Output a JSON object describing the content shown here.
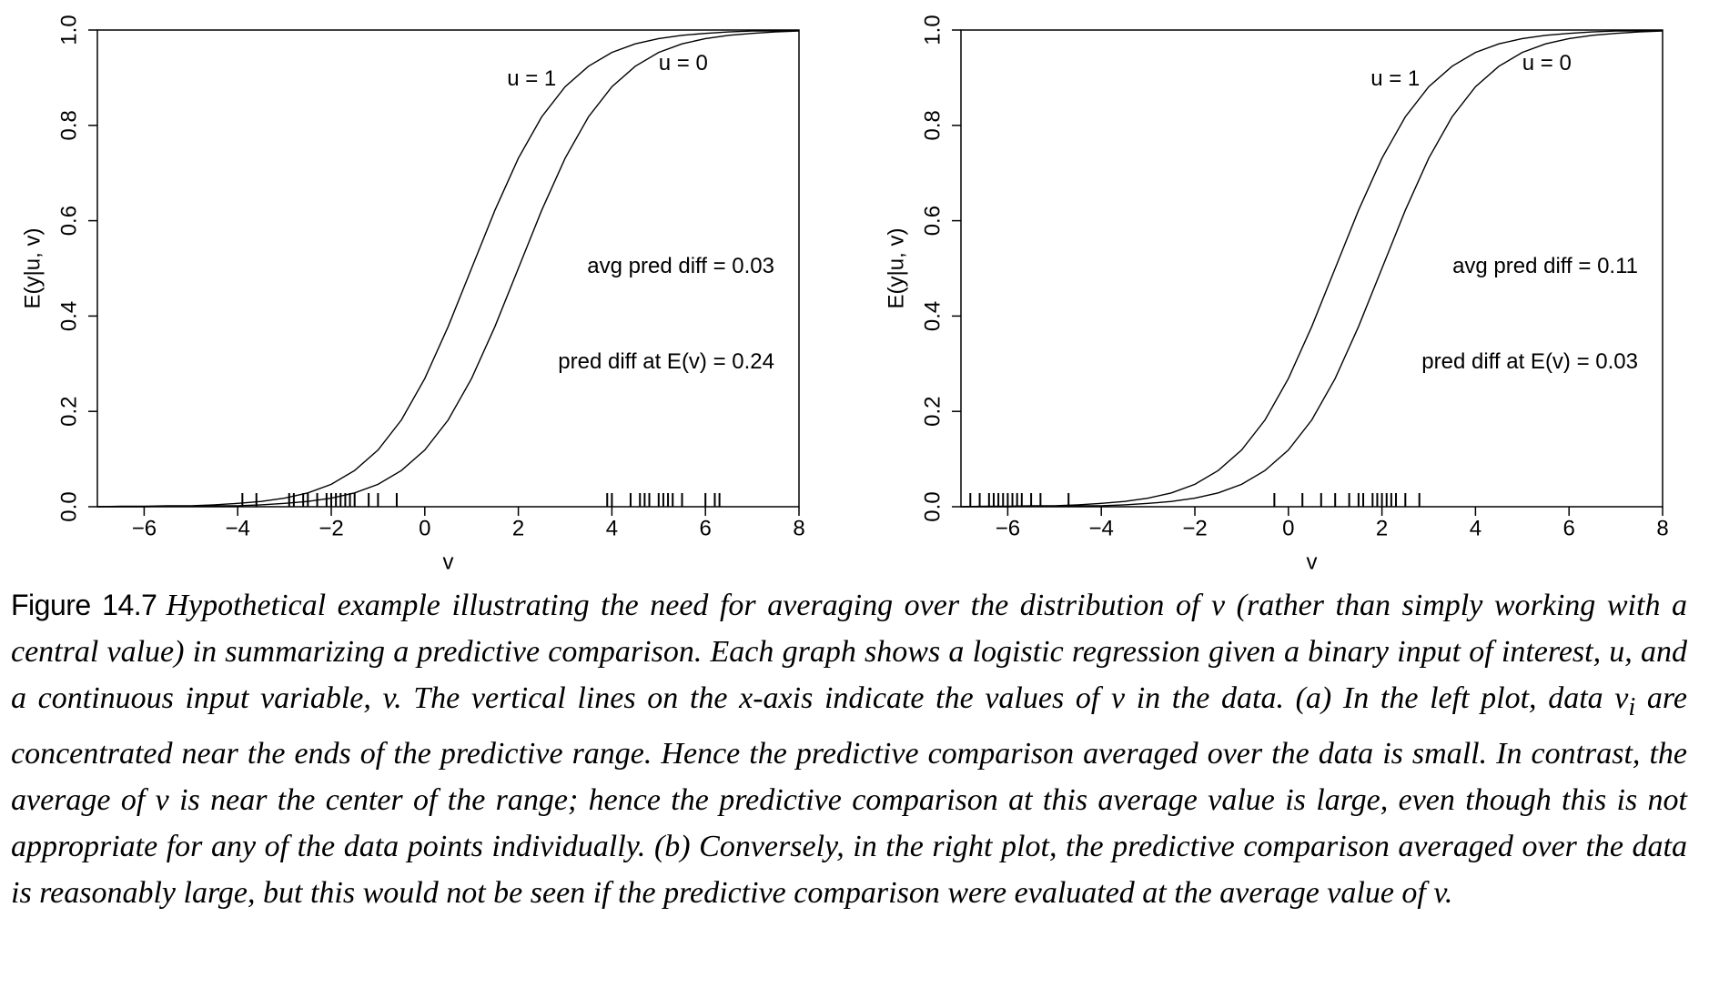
{
  "chart_data": [
    {
      "type": "line",
      "xlabel": "v",
      "ylabel": "E(y|u, v)",
      "xlim": [
        -7,
        8
      ],
      "ylim": [
        0,
        1
      ],
      "xticks": [
        {
          "value": -6,
          "label": "−6"
        },
        {
          "value": -4,
          "label": "−4"
        },
        {
          "value": -2,
          "label": "−2"
        },
        0,
        2,
        4,
        6,
        8
      ],
      "yticks": [
        {
          "value": 0,
          "label": "0.0"
        },
        {
          "value": 0.2,
          "label": "0.2"
        },
        {
          "value": 0.4,
          "label": "0.4"
        },
        {
          "value": 0.6,
          "label": "0.6"
        },
        {
          "value": 0.8,
          "label": "0.8"
        },
        {
          "value": 1,
          "label": "1.0"
        }
      ],
      "x": [
        -7,
        -6.5,
        -6,
        -5.5,
        -5,
        -4.5,
        -4,
        -3.5,
        -3,
        -2.5,
        -2,
        -1.5,
        -1,
        -0.5,
        0,
        0.5,
        1,
        1.5,
        2,
        2.5,
        3,
        3.5,
        4,
        4.5,
        5,
        5.5,
        6,
        6.5,
        7,
        7.5,
        8
      ],
      "series": [
        {
          "name": "u = 1",
          "color": "#000000",
          "values": [
            0.0,
            0.001,
            0.001,
            0.002,
            0.002,
            0.004,
            0.007,
            0.011,
            0.018,
            0.029,
            0.047,
            0.076,
            0.119,
            0.182,
            0.269,
            0.378,
            0.5,
            0.622,
            0.731,
            0.818,
            0.881,
            0.924,
            0.953,
            0.971,
            0.982,
            0.989,
            0.993,
            0.996,
            0.998,
            0.998,
            0.999
          ]
        },
        {
          "name": "u = 0",
          "color": "#000000",
          "values": [
            0.0,
            0.0,
            0.0,
            0.001,
            0.001,
            0.002,
            0.002,
            0.004,
            0.007,
            0.011,
            0.018,
            0.029,
            0.047,
            0.076,
            0.119,
            0.182,
            0.269,
            0.378,
            0.5,
            0.622,
            0.731,
            0.818,
            0.881,
            0.924,
            0.953,
            0.971,
            0.982,
            0.989,
            0.993,
            0.996,
            0.998
          ]
        }
      ],
      "annotations": [
        "avg pred diff = 0.03",
        "pred diff at E(v) = 0.24"
      ],
      "rug": [
        -3.9,
        -3.6,
        -2.9,
        -2.8,
        -2.6,
        -2.5,
        -2.3,
        -2.1,
        -2.0,
        -1.9,
        -1.8,
        -1.7,
        -1.6,
        -1.5,
        -1.2,
        -1.0,
        -0.6,
        3.9,
        4.0,
        4.4,
        4.6,
        4.7,
        4.8,
        5.0,
        5.1,
        5.2,
        5.3,
        5.5,
        6.0,
        6.2,
        6.3
      ]
    },
    {
      "type": "line",
      "xlabel": "v",
      "ylabel": "E(y|u, v)",
      "xlim": [
        -7,
        8
      ],
      "ylim": [
        0,
        1
      ],
      "xticks": [
        {
          "value": -6,
          "label": "−6"
        },
        {
          "value": -4,
          "label": "−4"
        },
        {
          "value": -2,
          "label": "−2"
        },
        0,
        2,
        4,
        6,
        8
      ],
      "yticks": [
        {
          "value": 0,
          "label": "0.0"
        },
        {
          "value": 0.2,
          "label": "0.2"
        },
        {
          "value": 0.4,
          "label": "0.4"
        },
        {
          "value": 0.6,
          "label": "0.6"
        },
        {
          "value": 0.8,
          "label": "0.8"
        },
        {
          "value": 1,
          "label": "1.0"
        }
      ],
      "x": [
        -7,
        -6.5,
        -6,
        -5.5,
        -5,
        -4.5,
        -4,
        -3.5,
        -3,
        -2.5,
        -2,
        -1.5,
        -1,
        -0.5,
        0,
        0.5,
        1,
        1.5,
        2,
        2.5,
        3,
        3.5,
        4,
        4.5,
        5,
        5.5,
        6,
        6.5,
        7,
        7.5,
        8
      ],
      "series": [
        {
          "name": "u = 1",
          "color": "#000000",
          "values": [
            0.0,
            0.001,
            0.001,
            0.002,
            0.002,
            0.004,
            0.007,
            0.011,
            0.018,
            0.029,
            0.047,
            0.076,
            0.119,
            0.182,
            0.269,
            0.378,
            0.5,
            0.622,
            0.731,
            0.818,
            0.881,
            0.924,
            0.953,
            0.971,
            0.982,
            0.989,
            0.993,
            0.996,
            0.998,
            0.998,
            0.999
          ]
        },
        {
          "name": "u = 0",
          "color": "#000000",
          "values": [
            0.0,
            0.0,
            0.0,
            0.001,
            0.001,
            0.002,
            0.002,
            0.004,
            0.007,
            0.011,
            0.018,
            0.029,
            0.047,
            0.076,
            0.119,
            0.182,
            0.269,
            0.378,
            0.5,
            0.622,
            0.731,
            0.818,
            0.881,
            0.924,
            0.953,
            0.971,
            0.982,
            0.989,
            0.993,
            0.996,
            0.998
          ]
        }
      ],
      "annotations": [
        "avg pred diff = 0.11",
        "pred diff at E(v) = 0.03"
      ],
      "rug": [
        -6.8,
        -6.6,
        -6.4,
        -6.3,
        -6.2,
        -6.1,
        -6.0,
        -5.9,
        -5.8,
        -5.7,
        -5.5,
        -5.3,
        -4.7,
        -0.3,
        0.3,
        0.7,
        1.0,
        1.3,
        1.5,
        1.6,
        1.8,
        1.9,
        2.0,
        2.1,
        2.2,
        2.3,
        2.5,
        2.8
      ]
    }
  ],
  "caption": {
    "label": "Figure 14.7",
    "text_before": "Hypothetical example illustrating the need for averaging over the distribution of v (rather than simply working with a central value) in summarizing a predictive comparison. Each graph shows a logistic regression given a binary input of interest, u, and a continuous input variable, v. The vertical lines on the x-axis indicate the values of v in the data. (a) In the left plot, data v",
    "subscript": "i",
    "text_after": " are concentrated near the ends of the predictive range. Hence the predictive comparison averaged over the data is small. In contrast, the average of v is near the center of the range; hence the predictive comparison at this average value is large, even though this is not appropriate for any of the data points individually. (b) Conversely, in the right plot, the predictive comparison averaged over the data is reasonably large, but this would not be seen if the predictive comparison were evaluated at the average value of v."
  }
}
